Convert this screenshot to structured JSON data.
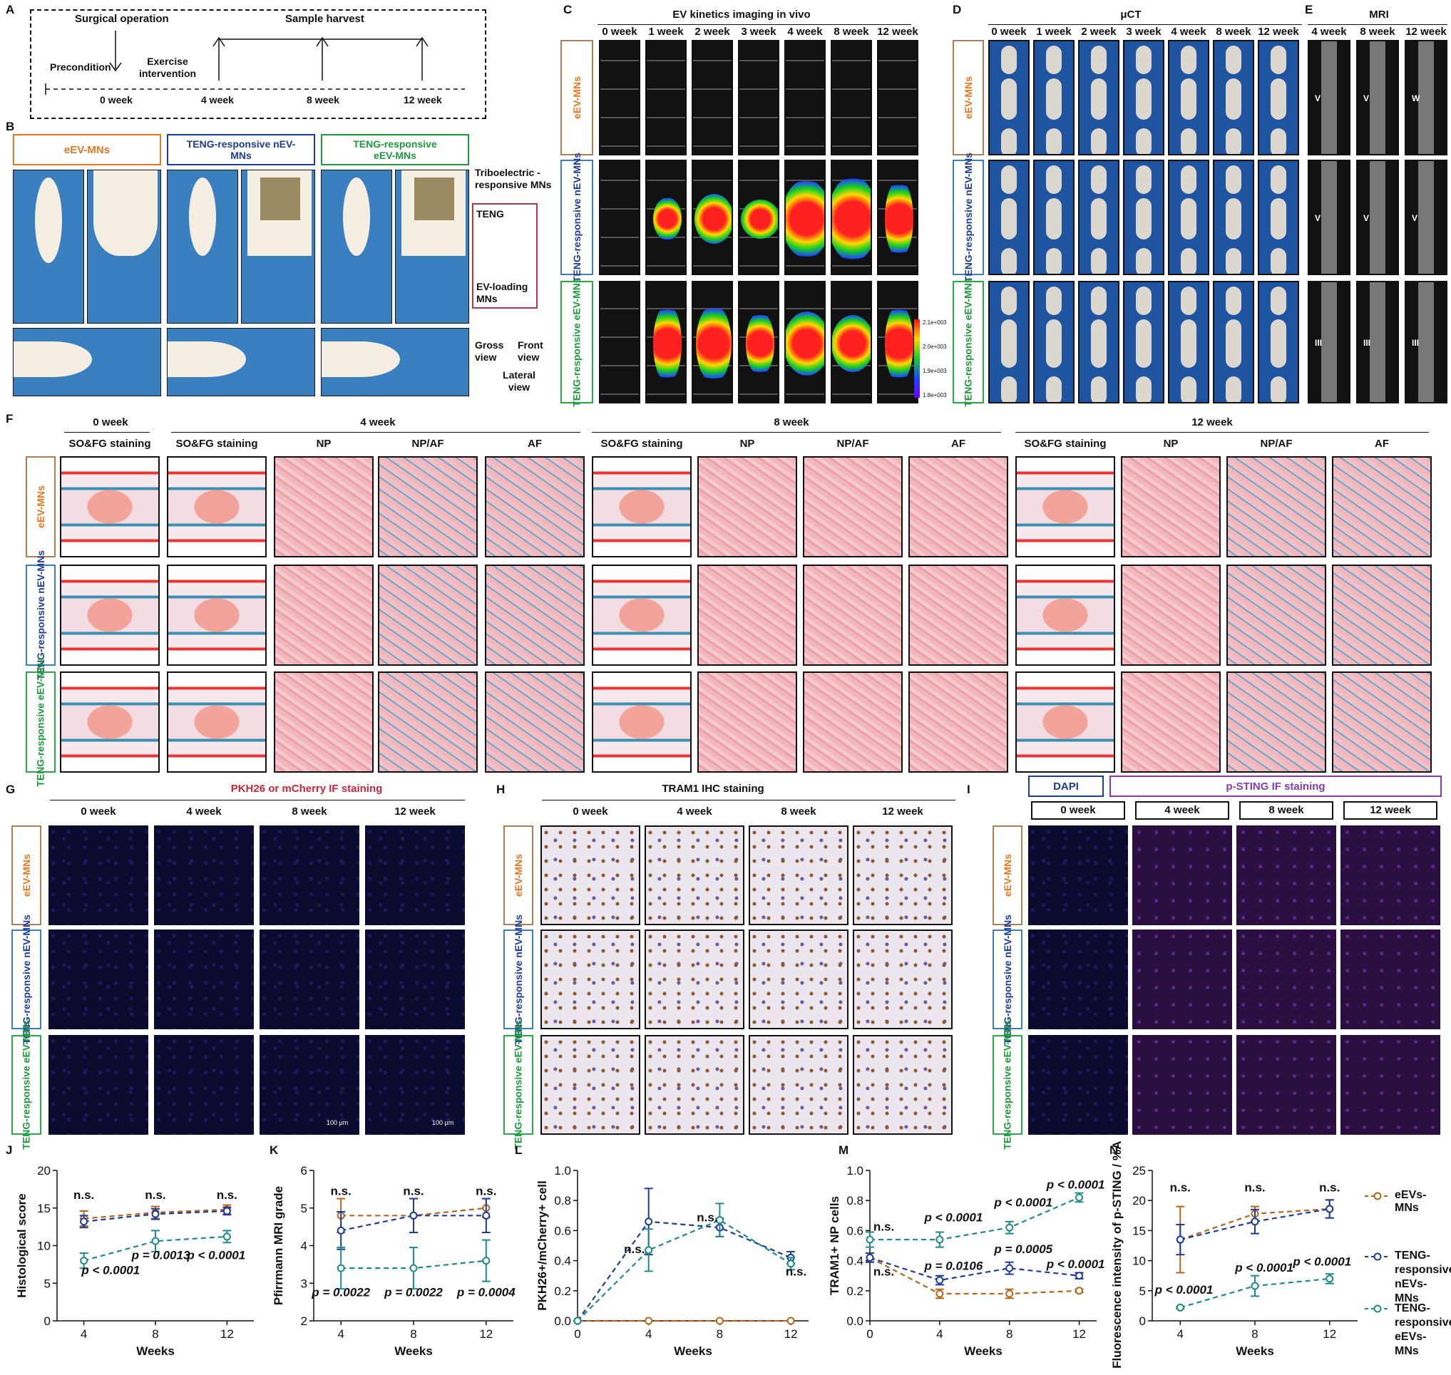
{
  "panels": {
    "A": "A",
    "B": "B",
    "C": "C",
    "D": "D",
    "E": "E",
    "F": "F",
    "G": "G",
    "H": "H",
    "I": "I",
    "J": "J",
    "K": "K",
    "L": "L",
    "M": "M",
    "N": "N"
  },
  "groups": {
    "g1": "eEV-MNs",
    "g2": "TENG-responsive nEV-MNs",
    "g3": "TENG-responsive eEV-MNs"
  },
  "timeline": {
    "surgical": "Surgical operation",
    "sample": "Sample harvest",
    "precondition": "Precondition",
    "exercise": "Exercise intervention",
    "t0": "0 week",
    "t4": "4 week",
    "t8": "8 week",
    "t12": "12 week"
  },
  "panelB": {
    "triboelectric": "Triboelectric -responsive MNs",
    "teng": "TENG",
    "evloading": "EV-loading MNs",
    "gross": "Gross view",
    "front": "Front view",
    "lateral": "Lateral view"
  },
  "panelC": {
    "title": "EV kinetics imaging in vivo",
    "weeks": [
      "0 week",
      "1 week",
      "2 week",
      "3 week",
      "4 week",
      "8 week",
      "12 week"
    ],
    "scale": [
      "2.1e+003",
      "2.0e+003",
      "1.9e+003",
      "1.8e+003"
    ]
  },
  "panelD": {
    "title": "μCT",
    "weeks": [
      "0 week",
      "1 week",
      "2 week",
      "3 week",
      "4 week",
      "8 week",
      "12 week"
    ]
  },
  "panelE": {
    "title": "MRI",
    "weeks": [
      "4 week",
      "8 week",
      "12 week"
    ],
    "grades": [
      [
        "V",
        "V",
        "W"
      ],
      [
        "V",
        "V",
        "V"
      ],
      [
        "III",
        "III",
        "III"
      ]
    ]
  },
  "panelF": {
    "t0": "0 week",
    "t4": "4 week",
    "t8": "8 week",
    "t12": "12 week",
    "cols": [
      "SO&FG staining",
      "SO&FG staining",
      "NP",
      "NP/AF",
      "AF",
      "SO&FG staining",
      "NP",
      "NP/AF",
      "AF",
      "SO&FG staining",
      "NP",
      "NP/AF",
      "AF"
    ]
  },
  "panelG": {
    "title": "PKH26 or mCherry IF staining",
    "weeks": [
      "0 week",
      "4 week",
      "8 week",
      "12 week"
    ],
    "scalebar": "100 μm"
  },
  "panelH": {
    "title": "TRAM1 IHC staining",
    "weeks": [
      "0 week",
      "4 week",
      "8 week",
      "12 week"
    ]
  },
  "panelI": {
    "dapi": "DAPI",
    "title": "p-STING IF staining",
    "weeks": [
      "0 week",
      "4 week",
      "8 week",
      "12 week"
    ]
  },
  "legend": {
    "l1": "eEVs-MNs",
    "l2": "TENG-responsive nEVs-MNs",
    "l3": "TENG-responsive eEVs-MNs"
  },
  "colors": {
    "orange": "#b5651d",
    "blue": "#1e3c9a",
    "teal": "#1f8a8a"
  },
  "chart_data": [
    {
      "type": "line",
      "panel": "J",
      "xlabel": "Weeks",
      "ylabel": "Histological score",
      "x": [
        4,
        8,
        12
      ],
      "ylim": [
        0,
        20
      ],
      "yticks": [
        0,
        5,
        10,
        15,
        20
      ],
      "series": [
        {
          "name": "eEVs-MNs",
          "values": [
            13.6,
            14.4,
            14.8
          ],
          "err": [
            1.0,
            0.8,
            0.6
          ]
        },
        {
          "name": "TENG-responsive nEVs-MNs",
          "values": [
            13.2,
            14.2,
            14.6
          ],
          "err": [
            0.8,
            0.7,
            0.5
          ]
        },
        {
          "name": "TENG-responsive eEVs-MNs",
          "values": [
            8.0,
            10.6,
            11.2
          ],
          "err": [
            1.0,
            1.4,
            0.8
          ]
        }
      ],
      "annotations": [
        "n.s.",
        "n.s.",
        "n.s.",
        "p < 0.0001",
        "p = 0.0013",
        "p < 0.0001"
      ]
    },
    {
      "type": "line",
      "panel": "K",
      "xlabel": "Weeks",
      "ylabel": "Pfirrmann MRI grade",
      "x": [
        4,
        8,
        12
      ],
      "ylim": [
        2,
        6
      ],
      "yticks": [
        2,
        3,
        4,
        5,
        6
      ],
      "series": [
        {
          "name": "eEVs-MNs",
          "values": [
            4.8,
            4.8,
            5.0
          ],
          "err": [
            0.45,
            0.45,
            0.25
          ]
        },
        {
          "name": "TENG-responsive nEVs-MNs",
          "values": [
            4.4,
            4.8,
            4.8
          ],
          "err": [
            0.5,
            0.45,
            0.45
          ]
        },
        {
          "name": "TENG-responsive eEVs-MNs",
          "values": [
            3.4,
            3.4,
            3.6
          ],
          "err": [
            0.55,
            0.55,
            0.55
          ]
        }
      ],
      "annotations": [
        "n.s.",
        "n.s.",
        "n.s.",
        "p = 0.0022",
        "p = 0.0022",
        "p = 0.0004"
      ]
    },
    {
      "type": "line",
      "panel": "L",
      "xlabel": "Weeks",
      "ylabel": "PKH26+/mCherry+ cell",
      "x": [
        0,
        4,
        8,
        12
      ],
      "ylim": [
        0,
        1.0
      ],
      "yticks": [
        0.0,
        0.2,
        0.4,
        0.6,
        0.8,
        1.0
      ],
      "series": [
        {
          "name": "eEVs-MNs",
          "values": [
            0,
            0,
            0,
            0
          ],
          "err": [
            0,
            0,
            0,
            0
          ]
        },
        {
          "name": "TENG-responsive nEVs-MNs",
          "values": [
            0,
            0.66,
            0.62,
            0.42
          ],
          "err": [
            0,
            0.22,
            0.06,
            0.04
          ]
        },
        {
          "name": "TENG-responsive eEVs-MNs",
          "values": [
            0,
            0.47,
            0.67,
            0.38
          ],
          "err": [
            0,
            0.14,
            0.11,
            0.04
          ]
        }
      ],
      "annotations": [
        "n.s.",
        "n.s.",
        "n.s."
      ]
    },
    {
      "type": "line",
      "panel": "M",
      "xlabel": "Weeks",
      "ylabel": "TRAM1+ NP cells",
      "x": [
        0,
        4,
        8,
        12
      ],
      "ylim": [
        0,
        1.0
      ],
      "yticks": [
        0.0,
        0.2,
        0.4,
        0.6,
        0.8,
        1.0
      ],
      "series": [
        {
          "name": "eEVs-MNs",
          "values": [
            0.42,
            0.18,
            0.18,
            0.2
          ],
          "err": [
            0.03,
            0.03,
            0.03,
            0.01
          ]
        },
        {
          "name": "TENG-responsive nEVs-MNs",
          "values": [
            0.42,
            0.27,
            0.35,
            0.3
          ],
          "err": [
            0.03,
            0.03,
            0.04,
            0.02
          ]
        },
        {
          "name": "TENG-responsive eEVs-MNs",
          "values": [
            0.54,
            0.54,
            0.62,
            0.82
          ],
          "err": [
            0.05,
            0.05,
            0.04,
            0.03
          ]
        }
      ],
      "annotations": [
        "n.s.",
        "n.s.",
        "p < 0.0001",
        "p < 0.0001",
        "p < 0.0001",
        "p = 0.0106",
        "p = 0.0005",
        "p < 0.0001"
      ]
    },
    {
      "type": "line",
      "panel": "N",
      "xlabel": "Weeks",
      "ylabel": "Fluorescence intensity of p-STING / %Area",
      "x": [
        4,
        8,
        12
      ],
      "ylim": [
        0,
        25
      ],
      "yticks": [
        0,
        5,
        10,
        15,
        20,
        25
      ],
      "series": [
        {
          "name": "eEVs-MNs",
          "values": [
            13.5,
            17.8,
            18.6
          ],
          "err": [
            5.5,
            1.2,
            1.5
          ]
        },
        {
          "name": "TENG-responsive nEVs-MNs",
          "values": [
            13.5,
            16.5,
            18.6
          ],
          "err": [
            2.5,
            2.0,
            1.5
          ]
        },
        {
          "name": "TENG-responsive eEVs-MNs",
          "values": [
            2.2,
            5.8,
            7.0
          ],
          "err": [
            0.2,
            1.7,
            0.8
          ]
        }
      ],
      "annotations": [
        "n.s.",
        "n.s.",
        "n.s.",
        "p < 0.0001",
        "p < 0.0001",
        "p < 0.0001"
      ]
    }
  ]
}
